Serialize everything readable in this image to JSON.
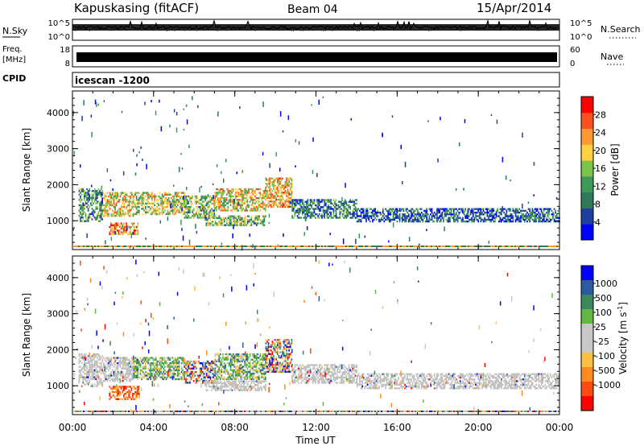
{
  "header": {
    "station": "Kapuskasing (fitACF)",
    "beam": "Beam 04",
    "date": "15/Apr/2014"
  },
  "strips": {
    "noise": {
      "left_label": "N.Sky",
      "right_label": "N.Search",
      "left_ticks": [
        "10^5",
        "10^0"
      ],
      "right_ticks": [
        "10^5",
        "10^0"
      ]
    },
    "freq": {
      "left_label_top": "Freq.",
      "left_label_bottom": "[MHz]",
      "right_label": "Nave",
      "left_ticks": [
        "18",
        "8"
      ],
      "right_ticks": [
        "60",
        "0"
      ]
    },
    "cpid": {
      "label": "CPID",
      "value": "icescan -1200"
    }
  },
  "colors": {
    "power_scale": [
      "#0000ff",
      "#1f3fa0",
      "#2f7a5a",
      "#3b9a5a",
      "#7ac24a",
      "#ffd040",
      "#ff9a30",
      "#ff5020",
      "#ff0000"
    ],
    "velocity_scale": [
      "#ff0000",
      "#ff4a10",
      "#ff8a20",
      "#ffc040",
      "#c8c8c8",
      "#c8c8c8",
      "#60b840",
      "#3a8a5a",
      "#2a5aa0",
      "#0000ff"
    ],
    "ground_scatter": "#c0c0c0"
  },
  "chart_data": [
    {
      "type": "heatmap",
      "id": "power",
      "x_unit": "Time UT",
      "x_range_hours": [
        0,
        24
      ],
      "xlabel": "",
      "ylabel": "Slant Range [km]",
      "ylim": [
        200,
        4600
      ],
      "yticks": [
        1000,
        2000,
        3000,
        4000
      ],
      "colorbar": {
        "label": "Power [dB]",
        "range": [
          0,
          32
        ],
        "ticks": [
          "28",
          "24",
          "20",
          "16",
          "12",
          "8",
          "4"
        ]
      },
      "bands": [
        {
          "t0": 0.3,
          "t1": 1.5,
          "r0": 1000,
          "r1": 1900,
          "level": 0.35
        },
        {
          "t0": 1.5,
          "t1": 3.0,
          "r0": 1150,
          "r1": 1800,
          "level": 0.6
        },
        {
          "t0": 1.8,
          "t1": 3.2,
          "r0": 650,
          "r1": 950,
          "level": 0.7
        },
        {
          "t0": 3.0,
          "t1": 5.5,
          "r0": 1200,
          "r1": 1800,
          "level": 0.55
        },
        {
          "t0": 5.5,
          "t1": 7.0,
          "r0": 1100,
          "r1": 1700,
          "level": 0.45
        },
        {
          "t0": 7.0,
          "t1": 9.5,
          "r0": 1300,
          "r1": 1900,
          "level": 0.6
        },
        {
          "t0": 9.5,
          "t1": 10.8,
          "r0": 1400,
          "r1": 2200,
          "level": 0.65
        },
        {
          "t0": 6.5,
          "t1": 9.5,
          "r0": 900,
          "r1": 1150,
          "level": 0.45
        },
        {
          "t0": 10.8,
          "t1": 14.0,
          "r0": 1100,
          "r1": 1600,
          "level": 0.3
        },
        {
          "t0": 14.0,
          "t1": 24.0,
          "r0": 1000,
          "r1": 1350,
          "level": 0.22
        }
      ]
    },
    {
      "type": "heatmap",
      "id": "velocity",
      "x_unit": "Time UT",
      "x_range_hours": [
        0,
        24
      ],
      "xlabel": "Time UT",
      "xticks": [
        "00:00",
        "04:00",
        "08:00",
        "12:00",
        "16:00",
        "20:00",
        "00:00"
      ],
      "ylabel": "Slant Range [km]",
      "ylim": [
        200,
        4600
      ],
      "yticks": [
        1000,
        2000,
        3000,
        4000
      ],
      "colorbar": {
        "label": "Velocity [m s^-1]",
        "ticks": [
          "1000",
          "500",
          "100",
          "25",
          "-25",
          "-100",
          "-500",
          "-1000"
        ]
      },
      "bands": [
        {
          "t0": 0.3,
          "t1": 1.5,
          "r0": 1000,
          "r1": 1900,
          "kind": "ground"
        },
        {
          "t0": 1.5,
          "t1": 3.0,
          "r0": 1150,
          "r1": 1800,
          "kind": "ground"
        },
        {
          "t0": 1.8,
          "t1": 3.3,
          "r0": 650,
          "r1": 1000,
          "kind": "away"
        },
        {
          "t0": 3.0,
          "t1": 5.5,
          "r0": 1200,
          "r1": 1800,
          "kind": "toward"
        },
        {
          "t0": 5.5,
          "t1": 7.0,
          "r0": 1100,
          "r1": 1700,
          "kind": "mixed"
        },
        {
          "t0": 7.0,
          "t1": 9.5,
          "r0": 1200,
          "r1": 1900,
          "kind": "toward"
        },
        {
          "t0": 9.5,
          "t1": 10.8,
          "r0": 1400,
          "r1": 2300,
          "kind": "mixed"
        },
        {
          "t0": 6.5,
          "t1": 9.5,
          "r0": 900,
          "r1": 1150,
          "kind": "ground"
        },
        {
          "t0": 10.8,
          "t1": 14.0,
          "r0": 1100,
          "r1": 1600,
          "kind": "ground"
        },
        {
          "t0": 14.0,
          "t1": 24.0,
          "r0": 950,
          "r1": 1350,
          "kind": "ground"
        }
      ]
    }
  ]
}
